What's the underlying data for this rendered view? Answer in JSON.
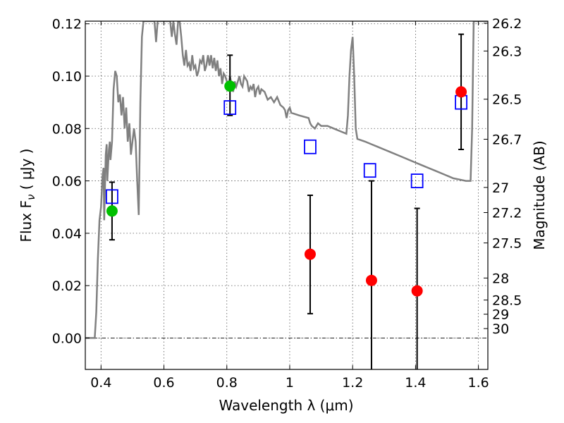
{
  "chart_data": {
    "type": "scatter",
    "xlabel": "Wavelength  λ (μm)",
    "ylabel": "Flux  F",
    "ylabel_sub": "ν",
    "ylabel_unit": "  ( μJy )",
    "y2label": "Magnitude (AB)",
    "xlim": [
      0.35,
      1.63
    ],
    "ylim": [
      -0.012,
      0.121
    ],
    "grid": true,
    "x_ticks": [
      {
        "value": 0.4,
        "label": "0.4"
      },
      {
        "value": 0.6,
        "label": "0.6"
      },
      {
        "value": 0.8,
        "label": "0.8"
      },
      {
        "value": 1.0,
        "label": "1"
      },
      {
        "value": 1.2,
        "label": "1.2"
      },
      {
        "value": 1.4,
        "label": "1.4"
      },
      {
        "value": 1.6,
        "label": "1.6"
      }
    ],
    "y_ticks": [
      {
        "value": 0.0,
        "label": "0.00"
      },
      {
        "value": 0.02,
        "label": "0.02"
      },
      {
        "value": 0.04,
        "label": "0.04"
      },
      {
        "value": 0.06,
        "label": "0.06"
      },
      {
        "value": 0.08,
        "label": "0.08"
      },
      {
        "value": 0.1,
        "label": "0.10"
      },
      {
        "value": 0.12,
        "label": "0.12"
      }
    ],
    "y2_ticks": [
      {
        "flux": 0.1202,
        "label": "26.2"
      },
      {
        "flux": 0.1096,
        "label": "26.3"
      },
      {
        "flux": 0.0912,
        "label": "26.5"
      },
      {
        "flux": 0.0759,
        "label": "26.7"
      },
      {
        "flux": 0.0575,
        "label": "27"
      },
      {
        "flux": 0.0479,
        "label": "27.2"
      },
      {
        "flux": 0.0363,
        "label": "27.5"
      },
      {
        "flux": 0.0229,
        "label": "28"
      },
      {
        "flux": 0.0145,
        "label": "28.5"
      },
      {
        "flux": 0.0091,
        "label": "29"
      },
      {
        "flux": 0.0036,
        "label": "30"
      }
    ],
    "model_spectrum": {
      "color": "#808080",
      "points": [
        [
          0.35,
          0.0
        ],
        [
          0.38,
          0.0
        ],
        [
          0.385,
          0.01
        ],
        [
          0.39,
          0.03
        ],
        [
          0.395,
          0.045
        ],
        [
          0.4,
          0.05
        ],
        [
          0.405,
          0.062
        ],
        [
          0.408,
          0.065
        ],
        [
          0.41,
          0.045
        ],
        [
          0.415,
          0.07
        ],
        [
          0.418,
          0.074
        ],
        [
          0.42,
          0.06
        ],
        [
          0.425,
          0.072
        ],
        [
          0.428,
          0.075
        ],
        [
          0.43,
          0.068
        ],
        [
          0.435,
          0.075
        ],
        [
          0.44,
          0.095
        ],
        [
          0.445,
          0.102
        ],
        [
          0.45,
          0.1
        ],
        [
          0.455,
          0.09
        ],
        [
          0.46,
          0.093
        ],
        [
          0.465,
          0.085
        ],
        [
          0.47,
          0.092
        ],
        [
          0.475,
          0.08
        ],
        [
          0.48,
          0.088
        ],
        [
          0.485,
          0.075
        ],
        [
          0.49,
          0.082
        ],
        [
          0.495,
          0.07
        ],
        [
          0.5,
          0.075
        ],
        [
          0.505,
          0.08
        ],
        [
          0.51,
          0.075
        ],
        [
          0.515,
          0.06
        ],
        [
          0.52,
          0.047
        ],
        [
          0.525,
          0.09
        ],
        [
          0.53,
          0.115
        ],
        [
          0.535,
          0.121
        ],
        [
          0.55,
          0.121
        ],
        [
          0.565,
          0.121
        ],
        [
          0.57,
          0.121
        ],
        [
          0.575,
          0.113
        ],
        [
          0.58,
          0.121
        ],
        [
          0.6,
          0.121
        ],
        [
          0.62,
          0.121
        ],
        [
          0.625,
          0.115
        ],
        [
          0.63,
          0.121
        ],
        [
          0.635,
          0.116
        ],
        [
          0.64,
          0.112
        ],
        [
          0.645,
          0.121
        ],
        [
          0.65,
          0.121
        ],
        [
          0.655,
          0.115
        ],
        [
          0.66,
          0.108
        ],
        [
          0.665,
          0.104
        ],
        [
          0.67,
          0.11
        ],
        [
          0.675,
          0.104
        ],
        [
          0.68,
          0.105
        ],
        [
          0.685,
          0.102
        ],
        [
          0.69,
          0.108
        ],
        [
          0.695,
          0.103
        ],
        [
          0.7,
          0.104
        ],
        [
          0.705,
          0.1
        ],
        [
          0.71,
          0.102
        ],
        [
          0.715,
          0.106
        ],
        [
          0.72,
          0.105
        ],
        [
          0.725,
          0.108
        ],
        [
          0.73,
          0.102
        ],
        [
          0.735,
          0.104
        ],
        [
          0.74,
          0.108
        ],
        [
          0.745,
          0.104
        ],
        [
          0.75,
          0.108
        ],
        [
          0.755,
          0.103
        ],
        [
          0.76,
          0.107
        ],
        [
          0.765,
          0.102
        ],
        [
          0.77,
          0.106
        ],
        [
          0.775,
          0.1
        ],
        [
          0.78,
          0.103
        ],
        [
          0.785,
          0.097
        ],
        [
          0.79,
          0.101
        ],
        [
          0.795,
          0.1
        ],
        [
          0.8,
          0.098
        ],
        [
          0.805,
          0.096
        ],
        [
          0.81,
          0.1
        ],
        [
          0.815,
          0.097
        ],
        [
          0.82,
          0.094
        ],
        [
          0.825,
          0.098
        ],
        [
          0.83,
          0.096
        ],
        [
          0.835,
          0.098
        ],
        [
          0.84,
          0.1
        ],
        [
          0.845,
          0.097
        ],
        [
          0.85,
          0.096
        ],
        [
          0.855,
          0.1
        ],
        [
          0.86,
          0.099
        ],
        [
          0.865,
          0.098
        ],
        [
          0.87,
          0.094
        ],
        [
          0.875,
          0.096
        ],
        [
          0.88,
          0.095
        ],
        [
          0.885,
          0.097
        ],
        [
          0.89,
          0.092
        ],
        [
          0.895,
          0.095
        ],
        [
          0.9,
          0.096
        ],
        [
          0.905,
          0.093
        ],
        [
          0.91,
          0.095
        ],
        [
          0.92,
          0.094
        ],
        [
          0.93,
          0.091
        ],
        [
          0.94,
          0.092
        ],
        [
          0.95,
          0.09
        ],
        [
          0.96,
          0.092
        ],
        [
          0.97,
          0.089
        ],
        [
          0.98,
          0.088
        ],
        [
          0.985,
          0.087
        ],
        [
          0.99,
          0.084
        ],
        [
          0.995,
          0.087
        ],
        [
          1.0,
          0.088
        ],
        [
          1.005,
          0.086
        ],
        [
          1.03,
          0.085
        ],
        [
          1.06,
          0.084
        ],
        [
          1.065,
          0.082
        ],
        [
          1.07,
          0.081
        ],
        [
          1.08,
          0.08
        ],
        [
          1.09,
          0.082
        ],
        [
          1.1,
          0.081
        ],
        [
          1.12,
          0.081
        ],
        [
          1.14,
          0.08
        ],
        [
          1.16,
          0.079
        ],
        [
          1.18,
          0.078
        ],
        [
          1.185,
          0.085
        ],
        [
          1.19,
          0.1
        ],
        [
          1.195,
          0.11
        ],
        [
          1.2,
          0.115
        ],
        [
          1.205,
          0.1
        ],
        [
          1.21,
          0.08
        ],
        [
          1.215,
          0.076
        ],
        [
          1.24,
          0.075
        ],
        [
          1.26,
          0.074
        ],
        [
          1.28,
          0.073
        ],
        [
          1.3,
          0.072
        ],
        [
          1.32,
          0.071
        ],
        [
          1.34,
          0.07
        ],
        [
          1.36,
          0.069
        ],
        [
          1.38,
          0.068
        ],
        [
          1.4,
          0.067
        ],
        [
          1.42,
          0.066
        ],
        [
          1.44,
          0.065
        ],
        [
          1.46,
          0.064
        ],
        [
          1.48,
          0.063
        ],
        [
          1.5,
          0.062
        ],
        [
          1.52,
          0.061
        ],
        [
          1.54,
          0.0605
        ],
        [
          1.56,
          0.06
        ],
        [
          1.575,
          0.06
        ],
        [
          1.58,
          0.08
        ],
        [
          1.585,
          0.121
        ],
        [
          1.63,
          0.121
        ]
      ]
    },
    "series": [
      {
        "marker": "square-open",
        "color": "#0000ff",
        "points": [
          {
            "x": 0.435,
            "y": 0.054
          },
          {
            "x": 0.81,
            "y": 0.088
          },
          {
            "x": 1.065,
            "y": 0.073
          },
          {
            "x": 1.255,
            "y": 0.064
          },
          {
            "x": 1.405,
            "y": 0.06
          },
          {
            "x": 1.545,
            "y": 0.09
          }
        ]
      },
      {
        "marker": "circle",
        "color": "#00c000",
        "points": [
          {
            "x": 0.435,
            "y": 0.0485,
            "yerr_lo": 0.0375,
            "yerr_hi": 0.0595
          },
          {
            "x": 0.81,
            "y": 0.0962,
            "yerr_lo": 0.085,
            "yerr_hi": 0.108
          }
        ]
      },
      {
        "marker": "circle",
        "color": "#ff0000",
        "points": [
          {
            "x": 1.065,
            "y": 0.032,
            "yerr_lo": 0.0093,
            "yerr_hi": 0.0545
          },
          {
            "x": 1.26,
            "y": 0.022,
            "yerr_lo": -0.012,
            "yerr_hi": 0.06
          },
          {
            "x": 1.405,
            "y": 0.018,
            "yerr_lo": -0.012,
            "yerr_hi": 0.0495
          },
          {
            "x": 1.545,
            "y": 0.094,
            "yerr_lo": 0.072,
            "yerr_hi": 0.116
          }
        ]
      }
    ]
  }
}
